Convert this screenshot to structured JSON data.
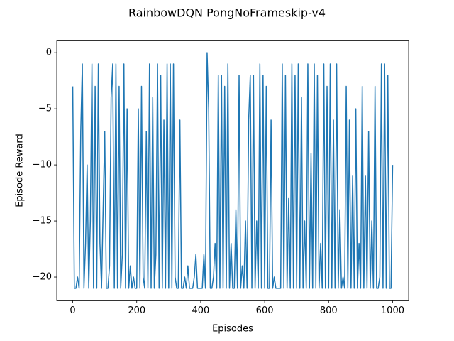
{
  "chart_data": {
    "type": "line",
    "title": "RainbowDQN  PongNoFrameskip-v4",
    "xlabel": "Episodes",
    "ylabel": "Episode Reward",
    "xlim": [
      -50,
      1050
    ],
    "ylim": [
      -22.05,
      1.05
    ],
    "xticks": [
      0,
      200,
      400,
      600,
      800,
      1000
    ],
    "yticks": [
      {
        "value": -20,
        "label": "−20"
      },
      {
        "value": -15,
        "label": "−15"
      },
      {
        "value": -10,
        "label": "−10"
      },
      {
        "value": -5,
        "label": "−5"
      },
      0
    ],
    "grid": false,
    "series": [
      {
        "color": "#1f77b4",
        "x": [
          0,
          5,
          10,
          15,
          20,
          25,
          30,
          35,
          40,
          45,
          50,
          55,
          60,
          65,
          70,
          75,
          80,
          85,
          90,
          95,
          100,
          105,
          110,
          115,
          120,
          125,
          130,
          135,
          140,
          145,
          150,
          155,
          160,
          165,
          170,
          175,
          180,
          185,
          190,
          195,
          200,
          205,
          210,
          215,
          220,
          225,
          230,
          235,
          240,
          245,
          250,
          255,
          260,
          265,
          270,
          275,
          280,
          285,
          290,
          295,
          300,
          305,
          310,
          315,
          320,
          325,
          330,
          335,
          340,
          345,
          350,
          355,
          360,
          365,
          370,
          375,
          380,
          385,
          390,
          395,
          400,
          405,
          410,
          415,
          420,
          425,
          430,
          435,
          440,
          445,
          450,
          455,
          460,
          465,
          470,
          475,
          480,
          485,
          490,
          495,
          500,
          505,
          510,
          515,
          520,
          525,
          530,
          535,
          540,
          545,
          550,
          555,
          560,
          565,
          570,
          575,
          580,
          585,
          590,
          595,
          600,
          605,
          610,
          615,
          620,
          625,
          630,
          635,
          640,
          645,
          650,
          655,
          660,
          665,
          670,
          675,
          680,
          685,
          690,
          695,
          700,
          705,
          710,
          715,
          720,
          725,
          730,
          735,
          740,
          745,
          750,
          755,
          760,
          765,
          770,
          775,
          780,
          785,
          790,
          795,
          800,
          805,
          810,
          815,
          820,
          825,
          830,
          835,
          840,
          845,
          850,
          855,
          860,
          865,
          870,
          875,
          880,
          885,
          890,
          895,
          900,
          905,
          910,
          915,
          920,
          925,
          930,
          935,
          940,
          945,
          950,
          955,
          960,
          965,
          970,
          975,
          980,
          985,
          990,
          995,
          1000
        ],
        "values": [
          -3,
          -21,
          -21,
          -20,
          -21,
          -7,
          -1,
          -21,
          -17,
          -10,
          -21,
          -15,
          -1,
          -21,
          -3,
          -21,
          -1,
          -17,
          -21,
          -14,
          -7,
          -21,
          -21,
          -19,
          -4,
          -1,
          -21,
          -1,
          -21,
          -3,
          -21,
          -18,
          -1,
          -21,
          -5,
          -21,
          -19,
          -21,
          -20,
          -21,
          -21,
          -5,
          -21,
          -3,
          -20,
          -21,
          -7,
          -21,
          -1,
          -21,
          -4,
          -21,
          -18,
          -1,
          -21,
          -2,
          -21,
          -6,
          -21,
          -1,
          -21,
          -1,
          -21,
          -1,
          -20,
          -21,
          -21,
          -6,
          -21,
          -21,
          -20,
          -21,
          -19,
          -21,
          -21,
          -21,
          -20,
          -18,
          -21,
          -21,
          -21,
          -21,
          -18,
          -21,
          0,
          -5,
          -21,
          -21,
          -20,
          -17,
          -21,
          -2,
          -21,
          -2,
          -21,
          -3,
          -21,
          -1,
          -21,
          -17,
          -21,
          -21,
          -14,
          -21,
          -2,
          -21,
          -19,
          -21,
          -15,
          -21,
          -6,
          -2,
          -21,
          -2,
          -21,
          -15,
          -21,
          -1,
          -21,
          -2,
          -21,
          -3,
          -21,
          -21,
          -6,
          -21,
          -20,
          -21,
          -21,
          -21,
          -21,
          -1,
          -21,
          -2,
          -21,
          -13,
          -21,
          -1,
          -21,
          -2,
          -21,
          -1,
          -21,
          -4,
          -21,
          -15,
          -21,
          -1,
          -21,
          -9,
          -21,
          -1,
          -21,
          -2,
          -21,
          -17,
          -21,
          -1,
          -21,
          -3,
          -21,
          -1,
          -21,
          -6,
          -21,
          -1,
          -21,
          -14,
          -21,
          -20,
          -21,
          -3,
          -21,
          -6,
          -21,
          -11,
          -21,
          -5,
          -21,
          -17,
          -21,
          -3,
          -21,
          -11,
          -21,
          -7,
          -21,
          -15,
          -21,
          -3,
          -21,
          -21,
          -20,
          -1,
          -21,
          -1,
          -21,
          -2,
          -21,
          -21,
          -10
        ]
      }
    ]
  }
}
